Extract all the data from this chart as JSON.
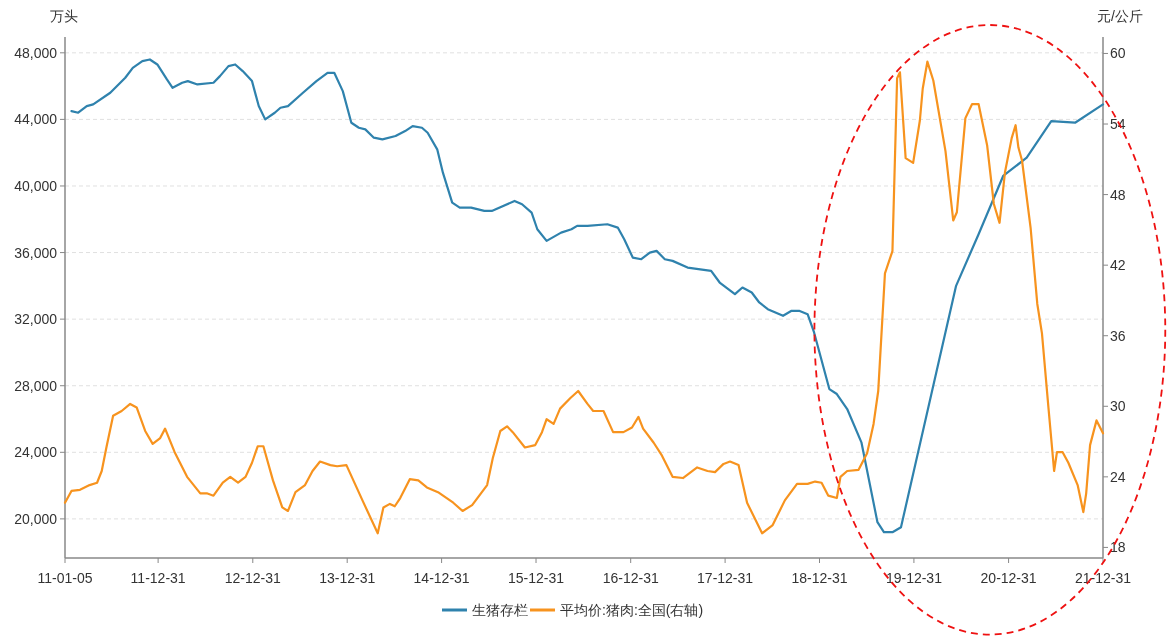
{
  "chart_data": {
    "type": "line",
    "ylabel": "万头",
    "y2label": "元/公斤",
    "legend": "bottom",
    "grid": "y",
    "marker": "none",
    "line_style": "solid",
    "xlim": [
      "2011-01-05",
      "2021-12-31"
    ],
    "xticks": [
      {
        "value": "2011-01-05",
        "label": "11-01-05"
      },
      {
        "value": "2011-12-31",
        "label": "11-12-31"
      },
      {
        "value": "2012-12-31",
        "label": "12-12-31"
      },
      {
        "value": "2013-12-31",
        "label": "13-12-31"
      },
      {
        "value": "2014-12-31",
        "label": "14-12-31"
      },
      {
        "value": "2015-12-31",
        "label": "15-12-31"
      },
      {
        "value": "2016-12-31",
        "label": "16-12-31"
      },
      {
        "value": "2017-12-31",
        "label": "17-12-31"
      },
      {
        "value": "2018-12-31",
        "label": "18-12-31"
      },
      {
        "value": "2019-12-31",
        "label": "19-12-31"
      },
      {
        "value": "2020-12-31",
        "label": "20-12-31"
      },
      {
        "value": "2021-12-31",
        "label": "21-12-31"
      }
    ],
    "ylim": [
      17650,
      48950
    ],
    "yticks": [
      {
        "value": 20000,
        "label": "20,000"
      },
      {
        "value": 24000,
        "label": "24,000"
      },
      {
        "value": 28000,
        "label": "28,000"
      },
      {
        "value": 32000,
        "label": "32,000"
      },
      {
        "value": 36000,
        "label": "36,000"
      },
      {
        "value": 40000,
        "label": "40,000"
      },
      {
        "value": 44000,
        "label": "44,000"
      },
      {
        "value": 48000,
        "label": "48,000"
      }
    ],
    "y2lim": [
      17.1,
      61.4
    ],
    "y2ticks": [
      18,
      24,
      30,
      36,
      42,
      48,
      54,
      60
    ],
    "series": [
      {
        "name": "生猪存栏",
        "color": "#2f82ad",
        "x": [
          "2011-01-30",
          "2011-02-25",
          "2011-03-30",
          "2011-04-24",
          "2011-06-29",
          "2011-08-26",
          "2011-09-24",
          "2011-10-31",
          "2011-11-29",
          "2011-12-28",
          "2012-02-03",
          "2012-02-25",
          "2012-04-02",
          "2012-04-24",
          "2012-05-31",
          "2012-08-01",
          "2012-08-26",
          "2012-09-28",
          "2012-10-24",
          "2012-11-22",
          "2012-12-28",
          "2013-01-23",
          "2013-02-17",
          "2013-03-26",
          "2013-04-17",
          "2013-05-16",
          "2013-07-13",
          "2013-09-03",
          "2013-10-16",
          "2013-11-11",
          "2013-12-14",
          "2014-01-16",
          "2014-02-14",
          "2014-03-11",
          "2014-04-13",
          "2014-05-16",
          "2014-07-06",
          "2014-08-12",
          "2014-09-10",
          "2014-10-16",
          "2014-11-07",
          "2014-12-14",
          "2015-01-05",
          "2015-02-10",
          "2015-03-11",
          "2015-04-24",
          "2015-06-14",
          "2015-07-13",
          "2015-10-09",
          "2015-11-07",
          "2015-12-14",
          "2016-01-05",
          "2016-02-10",
          "2016-04-06",
          "2016-05-16",
          "2016-06-07",
          "2016-07-17",
          "2016-10-02",
          "2016-11-11",
          "2016-12-06",
          "2017-01-08",
          "2017-02-10",
          "2017-03-15",
          "2017-04-10",
          "2017-05-12",
          "2017-06-11",
          "2017-08-08",
          "2017-11-07",
          "2017-12-10",
          "2018-02-07",
          "2018-03-08",
          "2018-04-13",
          "2018-05-12",
          "2018-06-14",
          "2018-08-12",
          "2018-09-14",
          "2018-10-13",
          "2018-11-15",
          "2018-12-10",
          "2019-02-07",
          "2019-03-08",
          "2019-04-17",
          "2019-06-11",
          "2019-08-12",
          "2019-09-06",
          "2019-10-09",
          "2019-11-11",
          "2020-06-11",
          "2020-09-06",
          "2020-12-10",
          "2021-03-11",
          "2021-06-14",
          "2021-09-14",
          "2021-12-31"
        ],
        "values": [
          44500,
          44400,
          44800,
          44900,
          45600,
          46500,
          47100,
          47500,
          47600,
          47300,
          46400,
          45900,
          46200,
          46300,
          46100,
          46200,
          46600,
          47200,
          47300,
          46900,
          46300,
          44800,
          44000,
          44400,
          44700,
          44800,
          45600,
          46300,
          46800,
          46800,
          45700,
          43800,
          43500,
          43400,
          42900,
          42800,
          43000,
          43300,
          43600,
          43500,
          43200,
          42200,
          40800,
          39000,
          38700,
          38700,
          38500,
          38500,
          39100,
          38900,
          38400,
          37400,
          36700,
          37200,
          37400,
          37600,
          37600,
          37700,
          37500,
          36800,
          35700,
          35600,
          36000,
          36100,
          35600,
          35500,
          35100,
          34900,
          34200,
          33500,
          33900,
          33600,
          33000,
          32600,
          32200,
          32500,
          32500,
          32300,
          31200,
          27800,
          27500,
          26600,
          24600,
          19800,
          19200,
          19200,
          19500,
          34000,
          37100,
          40600,
          41700,
          43900,
          43800,
          44900
        ]
      },
      {
        "name": "平均价:猪肉:全国(右轴)",
        "color": "#f7931e",
        "axis": "y2",
        "x": [
          "2011-01-05",
          "2011-01-30",
          "2011-03-04",
          "2011-04-10",
          "2011-05-09",
          "2011-05-27",
          "2011-06-14",
          "2011-07-10",
          "2011-08-12",
          "2011-09-14",
          "2011-10-09",
          "2011-11-11",
          "2011-12-10",
          "2012-01-08",
          "2012-01-27",
          "2012-03-04",
          "2012-04-21",
          "2012-06-11",
          "2012-07-06",
          "2012-08-01",
          "2012-09-06",
          "2012-10-05",
          "2012-11-04",
          "2012-12-03",
          "2012-12-28",
          "2013-01-19",
          "2013-02-10",
          "2013-03-19",
          "2013-04-24",
          "2013-05-16",
          "2013-06-14",
          "2013-07-21",
          "2013-08-19",
          "2013-09-17",
          "2013-10-27",
          "2013-11-22",
          "2013-12-28",
          "2014-01-30",
          "2014-02-28",
          "2014-04-28",
          "2014-05-20",
          "2014-06-14",
          "2014-07-03",
          "2014-07-24",
          "2014-08-30",
          "2014-10-02",
          "2014-11-04",
          "2014-12-17",
          "2015-02-14",
          "2015-03-22",
          "2015-04-28",
          "2015-06-25",
          "2015-07-17",
          "2015-08-15",
          "2015-09-10",
          "2015-10-02",
          "2015-11-18",
          "2015-12-28",
          "2016-01-23",
          "2016-02-10",
          "2016-03-08",
          "2016-04-02",
          "2016-05-12",
          "2016-06-11",
          "2016-07-17",
          "2016-08-08",
          "2016-09-17",
          "2016-10-24",
          "2016-12-03",
          "2017-01-05",
          "2017-01-30",
          "2017-02-17",
          "2017-03-30",
          "2017-05-01",
          "2017-06-11",
          "2017-07-21",
          "2017-09-14",
          "2017-10-24",
          "2017-11-22",
          "2017-12-25",
          "2018-01-19",
          "2018-02-21",
          "2018-03-26",
          "2018-05-23",
          "2018-07-03",
          "2018-08-19",
          "2018-10-05",
          "2018-11-15",
          "2018-12-14",
          "2019-01-08",
          "2019-02-03",
          "2019-03-08",
          "2019-03-22",
          "2019-04-17",
          "2019-05-31",
          "2019-07-03",
          "2019-07-28",
          "2019-08-15",
          "2019-09-10",
          "2019-10-09",
          "2019-10-27",
          "2019-11-07",
          "2019-11-29",
          "2019-12-28",
          "2020-01-23",
          "2020-02-03",
          "2020-02-21",
          "2020-03-15",
          "2020-05-01",
          "2020-05-31",
          "2020-06-14",
          "2020-07-17",
          "2020-08-12",
          "2020-09-06",
          "2020-10-09",
          "2020-11-04",
          "2020-11-26",
          "2020-12-17",
          "2021-01-12",
          "2021-01-27",
          "2021-02-07",
          "2021-02-21",
          "2021-03-26",
          "2021-04-21",
          "2021-05-09",
          "2021-06-03",
          "2021-06-25",
          "2021-07-06",
          "2021-07-28",
          "2021-08-19",
          "2021-09-24",
          "2021-10-16",
          "2021-10-27",
          "2021-11-11",
          "2021-12-06",
          "2021-12-31"
        ],
        "values": [
          21.8,
          22.8,
          22.9,
          23.3,
          23.5,
          24.5,
          26.5,
          29.2,
          29.6,
          30.2,
          29.9,
          27.9,
          26.8,
          27.3,
          28.1,
          26.1,
          24.0,
          22.6,
          22.6,
          22.4,
          23.5,
          24.0,
          23.5,
          24.0,
          25.2,
          26.6,
          26.6,
          23.7,
          21.4,
          21.1,
          22.7,
          23.3,
          24.5,
          25.3,
          25.0,
          24.9,
          25.0,
          23.4,
          22.0,
          19.2,
          21.4,
          21.7,
          21.5,
          22.2,
          23.8,
          23.7,
          23.1,
          22.7,
          21.8,
          21.1,
          21.6,
          23.3,
          25.6,
          27.9,
          28.3,
          27.8,
          26.5,
          26.7,
          27.8,
          28.9,
          28.5,
          29.8,
          30.7,
          31.3,
          30.2,
          29.6,
          29.6,
          27.8,
          27.8,
          28.2,
          29.1,
          28.1,
          26.9,
          25.8,
          24.0,
          23.9,
          24.8,
          24.5,
          24.4,
          25.1,
          25.3,
          25.0,
          21.8,
          19.2,
          19.9,
          22.0,
          23.4,
          23.4,
          23.6,
          23.5,
          22.4,
          22.2,
          24.0,
          24.5,
          24.6,
          26.0,
          28.5,
          31.3,
          41.3,
          43.2,
          57.9,
          58.4,
          51.1,
          50.7,
          54.3,
          57.0,
          59.3,
          57.7,
          51.7,
          45.8,
          46.5,
          54.5,
          55.7,
          55.7,
          52.2,
          47.2,
          45.6,
          49.9,
          52.8,
          53.9,
          52.0,
          50.9,
          45.2,
          38.7,
          36.2,
          29.9,
          24.5,
          26.1,
          26.1,
          25.2,
          23.3,
          21.0,
          22.6,
          26.7,
          28.8,
          27.7
        ]
      }
    ]
  }
}
